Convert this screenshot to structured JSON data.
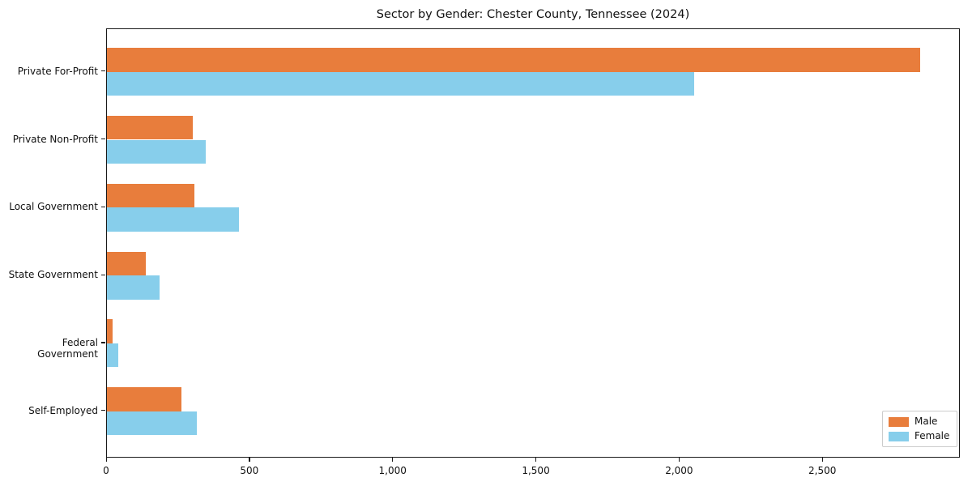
{
  "chart_data": {
    "type": "bar",
    "orientation": "horizontal",
    "title": "Sector by Gender: Chester County, Tennessee (2024)",
    "categories": [
      "Private For-Profit",
      "Private Non-Profit",
      "Local Government",
      "State Government",
      "Federal Government",
      "Self-Employed"
    ],
    "series": [
      {
        "name": "Male",
        "color": "#e87d3c",
        "values": [
          2840,
          300,
          305,
          135,
          20,
          260
        ]
      },
      {
        "name": "Female",
        "color": "#87ceeb",
        "values": [
          2050,
          345,
          460,
          185,
          40,
          315
        ]
      }
    ],
    "xlabel": "",
    "ylabel": "",
    "xlim": [
      0,
      2980
    ],
    "xticks": [
      0,
      500,
      1000,
      1500,
      2000,
      2500
    ],
    "xtick_labels": [
      "0",
      "500",
      "1,000",
      "1,500",
      "2,000",
      "2,500"
    ],
    "legend_position": "lower right",
    "grid": false,
    "colors": {
      "male": "#e87d3c",
      "female": "#87ceeb",
      "axis": "#1a1a1a",
      "legend_border": "#cccccc"
    }
  }
}
